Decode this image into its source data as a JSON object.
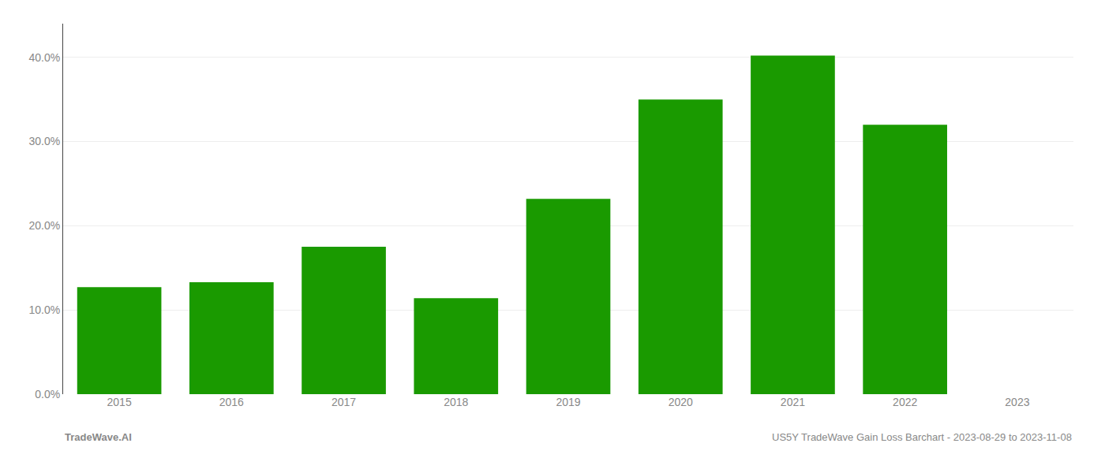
{
  "chart_data": {
    "type": "bar",
    "categories": [
      "2015",
      "2016",
      "2017",
      "2018",
      "2019",
      "2020",
      "2021",
      "2022",
      "2023"
    ],
    "values": [
      0.127,
      0.133,
      0.175,
      0.114,
      0.232,
      0.35,
      0.402,
      0.32,
      null
    ],
    "color": "#1a9a00",
    "ylim": [
      0,
      0.44
    ],
    "yticks": [
      {
        "value": 0.0,
        "label": "0.0%"
      },
      {
        "value": 0.1,
        "label": "10.0%"
      },
      {
        "value": 0.2,
        "label": "20.0%"
      },
      {
        "value": 0.3,
        "label": "30.0%"
      },
      {
        "value": 0.4,
        "label": "40.0%"
      }
    ],
    "grid": true,
    "annotations": [
      "TradeWave.AI",
      "US5Y TradeWave Gain Loss Barchart - 2023-08-29 to 2023-11-08"
    ]
  }
}
